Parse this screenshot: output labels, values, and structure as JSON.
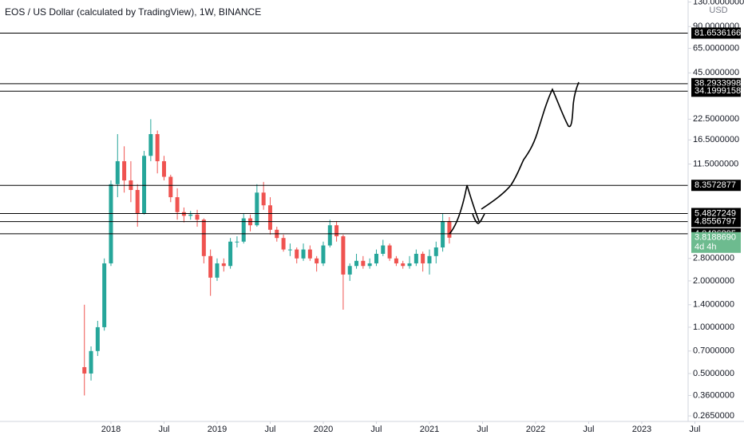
{
  "chart_data": {
    "type": "candlestick",
    "title": "EOS / US Dollar (calculated by TradingView), 1W, BINANCE",
    "currency": "USD",
    "x": [
      2017.75,
      2017.8125,
      2017.875,
      2017.9375,
      2018.0,
      2018.0625,
      2018.125,
      2018.1875,
      2018.25,
      2018.3125,
      2018.375,
      2018.4375,
      2018.5,
      2018.5625,
      2018.625,
      2018.6875,
      2018.75,
      2018.8125,
      2018.875,
      2018.9375,
      2019.0,
      2019.0625,
      2019.125,
      2019.1875,
      2019.25,
      2019.3125,
      2019.375,
      2019.4375,
      2019.5,
      2019.5625,
      2019.625,
      2019.6875,
      2019.75,
      2019.8125,
      2019.875,
      2019.9375,
      2020.0,
      2020.0625,
      2020.125,
      2020.1875,
      2020.25,
      2020.3125,
      2020.375,
      2020.4375,
      2020.5,
      2020.5625,
      2020.625,
      2020.6875,
      2020.75,
      2020.8125,
      2020.875,
      2020.9375,
      2021.0,
      2021.0625,
      2021.125,
      2021.1875
    ],
    "open": [
      0.55,
      0.5,
      0.7,
      1.0,
      2.6,
      8.5,
      12,
      9,
      7.8,
      5.5,
      13,
      18,
      12,
      9.5,
      7,
      5.6,
      5.3,
      5.4,
      5.0,
      2.9,
      2.1,
      2.6,
      2.5,
      3.6,
      3.6,
      5.1,
      4.6,
      7.5,
      6.2,
      4.3,
      3.8,
      3.2,
      3.2,
      2.8,
      3.2,
      2.8,
      2.6,
      3.4,
      4.6,
      3.9,
      2.2,
      2.5,
      2.7,
      2.5,
      2.6,
      3.0,
      3.4,
      2.8,
      2.6,
      2.5,
      2.6,
      3.0,
      2.6,
      2.9,
      3.3,
      4.9
    ],
    "high": [
      1.4,
      0.75,
      1.1,
      2.8,
      9.0,
      18,
      15,
      12,
      8.5,
      14,
      22.5,
      19,
      13,
      9.8,
      8,
      6,
      5.7,
      5.8,
      5.1,
      3.2,
      2.8,
      2.8,
      3.8,
      3.9,
      5.5,
      5.4,
      8.5,
      8.8,
      7.0,
      4.5,
      4.0,
      3.5,
      3.3,
      3.5,
      3.4,
      2.9,
      3.6,
      5.0,
      4.9,
      4.0,
      2.6,
      3.0,
      2.9,
      2.8,
      3.2,
      3.7,
      3.5,
      2.9,
      2.7,
      2.9,
      3.2,
      3.1,
      3.2,
      3.6,
      5.5,
      5.2
    ],
    "low": [
      0.36,
      0.45,
      0.65,
      0.95,
      2.5,
      7,
      7.5,
      6.5,
      4.5,
      5.4,
      12,
      10,
      9,
      6.5,
      5,
      4.8,
      5.0,
      4.5,
      2.6,
      1.6,
      2.0,
      2.3,
      2.4,
      3.3,
      3.5,
      4.2,
      4.5,
      5.8,
      4.0,
      3.6,
      3.1,
      2.9,
      2.6,
      2.7,
      2.7,
      2.3,
      2.5,
      3.3,
      3.6,
      1.3,
      2.0,
      2.4,
      2.4,
      2.4,
      2.5,
      2.9,
      2.7,
      2.5,
      2.4,
      2.4,
      2.5,
      2.3,
      2.2,
      2.6,
      3.1,
      3.5
    ],
    "close": [
      0.5,
      0.7,
      1.0,
      2.6,
      8.5,
      12,
      9,
      7.8,
      5.5,
      13,
      18,
      12,
      9.5,
      7,
      5.6,
      5.3,
      5.4,
      5.0,
      2.9,
      2.1,
      2.6,
      2.5,
      3.6,
      3.6,
      5.1,
      4.6,
      7.5,
      6.2,
      4.3,
      3.8,
      3.2,
      3.2,
      2.8,
      3.2,
      2.8,
      2.6,
      3.4,
      4.6,
      3.9,
      2.2,
      2.5,
      2.7,
      2.5,
      2.6,
      3.0,
      3.4,
      2.8,
      2.6,
      2.5,
      2.6,
      3.0,
      2.6,
      2.9,
      3.3,
      4.9,
      3.818869
    ],
    "up_color": "#26a69a",
    "down_color": "#ef5350",
    "levels": [
      81.6536166,
      38.2933998,
      34.1999158,
      8.3572877,
      5.4827249,
      4.8556797,
      4.0486895
    ],
    "level_color": "#000000",
    "last_price": {
      "value": 3.818869,
      "label": "3.8188690"
    },
    "countdown": "4d 4h",
    "last_color": "#6dbb8f",
    "xlim": [
      2016.955,
      2023.459
    ],
    "xticks": [
      {
        "value": 2018,
        "label": "2018"
      },
      {
        "value": 2018.5,
        "label": "Jul"
      },
      {
        "value": 2019,
        "label": "2019"
      },
      {
        "value": 2019.5,
        "label": "Jul"
      },
      {
        "value": 2020,
        "label": "2020"
      },
      {
        "value": 2020.5,
        "label": "Jul"
      },
      {
        "value": 2021,
        "label": "2021"
      },
      {
        "value": 2021.5,
        "label": "Jul"
      },
      {
        "value": 2022,
        "label": "2022"
      },
      {
        "value": 2022.5,
        "label": "Jul"
      },
      {
        "value": 2023,
        "label": "2023"
      },
      {
        "value": 2023.5,
        "label": "Jul"
      }
    ],
    "ylim": [
      0.244,
      134
    ],
    "ylog": true,
    "yticks": [
      {
        "value": 130,
        "label": "130.0000000"
      },
      {
        "value": 90,
        "label": "90.0000000"
      },
      {
        "value": 65,
        "label": "65.0000000"
      },
      {
        "value": 45,
        "label": "45.0000000"
      },
      {
        "value": 22.5,
        "label": "22.5000000"
      },
      {
        "value": 16.5,
        "label": "16.5000000"
      },
      {
        "value": 11.5,
        "label": "11.5000000"
      },
      {
        "value": 2.8,
        "label": "2.8000000"
      },
      {
        "value": 2,
        "label": "2.0000000"
      },
      {
        "value": 1.4,
        "label": "1.4000000"
      },
      {
        "value": 1,
        "label": "1.0000000"
      },
      {
        "value": 0.7,
        "label": "0.7000000"
      },
      {
        "value": 0.5,
        "label": "0.5000000"
      },
      {
        "value": 0.36,
        "label": "0.3600000"
      },
      {
        "value": 0.265,
        "label": "0.2650000"
      }
    ],
    "grid": false
  }
}
